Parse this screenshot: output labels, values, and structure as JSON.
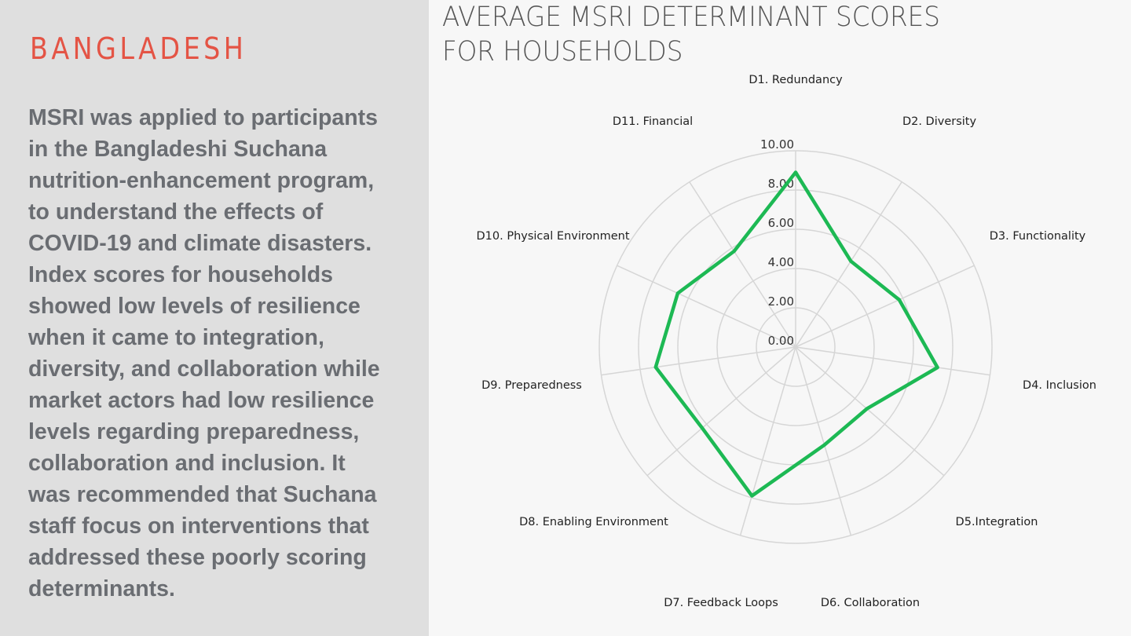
{
  "panel": {
    "country": "BANGLADESH",
    "body_lines": [
      "MSRI was applied to participants",
      "in the Bangladeshi Suchana",
      "nutrition-enhancement program,",
      "to understand the effects of",
      "COVID-19 and climate disasters.",
      "Index scores for households",
      "showed low levels of resilience",
      "when it came to integration,",
      "diversity, and collaboration while",
      "market actors had low resilience",
      "levels regarding preparedness,",
      "collaboration and inclusion. It",
      "was recommended that Suchana",
      "staff focus on interventions that",
      "addressed these poorly scoring",
      "determinants."
    ]
  },
  "colors": {
    "accent": "#e45445",
    "series": "#1db954",
    "grid": "#d6d6d6",
    "panel_bg": "#dfdfdf"
  },
  "chart_data": {
    "type": "radar",
    "title_lines": [
      "AVERAGE MSRI DETERMINANT SCORES",
      "FOR HOUSEHOLDS"
    ],
    "categories": [
      "D1. Redundancy",
      "D2. Diversity",
      "D3. Functionality",
      "D4. Inclusion",
      "D5.Integration",
      "D6. Collaboration",
      "D7. Feedback Loops",
      "D8. Enabling Environment",
      "D9. Preparedness",
      "D10. Physical Environment",
      "D11. Financial"
    ],
    "series": [
      {
        "name": "Households",
        "values": [
          8.9,
          5.2,
          5.8,
          7.3,
          4.8,
          5.2,
          7.9,
          6.3,
          7.2,
          6.6,
          5.8
        ]
      }
    ],
    "rlim": [
      0,
      10
    ],
    "ticks": [
      "0.00",
      "2.00",
      "4.00",
      "6.00",
      "8.00",
      "10.00"
    ],
    "tick_values": [
      0,
      2,
      4,
      6,
      8,
      10
    ],
    "grid": true,
    "legend": "none"
  }
}
